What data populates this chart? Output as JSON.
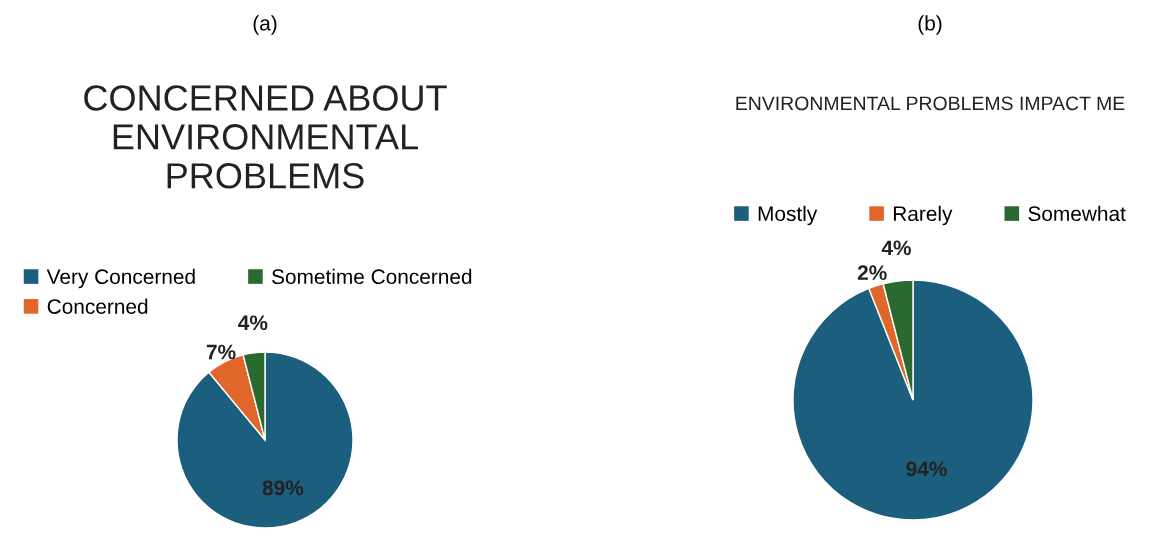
{
  "chart_data": [
    {
      "type": "pie",
      "title": "CONCERNED ABOUT ENVIRONMENTAL PROBLEMS",
      "annotations": [
        "(a)"
      ],
      "categories": [
        "Very Concerned",
        "Concerned",
        "Sometime Concerned"
      ],
      "values": [
        89,
        7,
        4
      ],
      "value_labels": [
        "89%",
        "7%",
        "4%"
      ],
      "colors": [
        "#1b5e7e",
        "#e0662a",
        "#2a6a30"
      ],
      "legend": "top left"
    },
    {
      "type": "pie",
      "title": "ENVIRONMENTAL PROBLEMS IMPACT ME",
      "annotations": [
        "(b)"
      ],
      "categories": [
        "Mostly",
        "Rarely",
        "Somewhat"
      ],
      "values": [
        94,
        2,
        4
      ],
      "value_labels": [
        "94%",
        "2%",
        "4%"
      ],
      "colors": [
        "#1b5e7e",
        "#e0662a",
        "#2a6a30"
      ],
      "legend": "top"
    }
  ]
}
